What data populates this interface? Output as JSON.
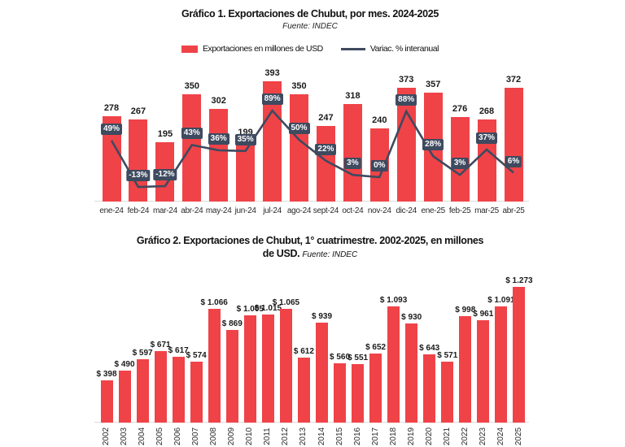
{
  "colors": {
    "bar_red": "#EF4348",
    "line_navy": "#3E4A5F",
    "axis_gray": "#DCDCDC",
    "text_black": "#111111"
  },
  "chart_data": [
    {
      "id": "grafico1",
      "type": "bar",
      "title": "Gráfico 1. Exportaciones de Chubut, por mes. 2024-2025",
      "source": "Fuente: INDEC",
      "legend": [
        {
          "swatch": "bar",
          "label": "Exportaciones en millones de USD"
        },
        {
          "swatch": "line",
          "label": "Variac. % interanual"
        }
      ],
      "categories": [
        "ene-24",
        "feb-24",
        "mar-24",
        "abr-24",
        "may-24",
        "jun-24",
        "jul-24",
        "ago-24",
        "sept-24",
        "oct-24",
        "nov-24",
        "dic-24",
        "ene-25",
        "feb-25",
        "mar-25",
        "abr-25"
      ],
      "series": [
        {
          "name": "Exportaciones en millones de USD",
          "type": "bar",
          "values": [
            278,
            267,
            195,
            350,
            302,
            199,
            393,
            350,
            247,
            318,
            240,
            373,
            357,
            276,
            268,
            372
          ]
        },
        {
          "name": "Variac. % interanual",
          "type": "line",
          "unit": "%",
          "values": [
            49,
            -13,
            -12,
            43,
            36,
            35,
            89,
            50,
            22,
            3,
            0,
            88,
            28,
            3,
            37,
            6
          ]
        }
      ],
      "value_labels": "shown",
      "grid": "off",
      "legend_position": "top"
    },
    {
      "id": "grafico2",
      "type": "bar",
      "title_line1": "Gráfico 2. Exportaciones de Chubut, 1° cuatrimestre. 2002-2025, en millones",
      "title_line2": "de USD.",
      "source": "Fuente: INDEC",
      "categories": [
        "2002",
        "2003",
        "2004",
        "2005",
        "2006",
        "2007",
        "2008",
        "2009",
        "2010",
        "2011",
        "2012",
        "2013",
        "2014",
        "2015",
        "2016",
        "2017",
        "2018",
        "2019",
        "2020",
        "2021",
        "2022",
        "2023",
        "2024",
        "2025"
      ],
      "values": [
        398,
        490,
        597,
        671,
        617,
        574,
        1066,
        869,
        1005,
        1015,
        1065,
        612,
        939,
        560,
        551,
        652,
        1093,
        930,
        643,
        571,
        998,
        961,
        1091,
        1273
      ],
      "value_prefix": "$ ",
      "value_labels": "shown",
      "grid": "off"
    }
  ]
}
